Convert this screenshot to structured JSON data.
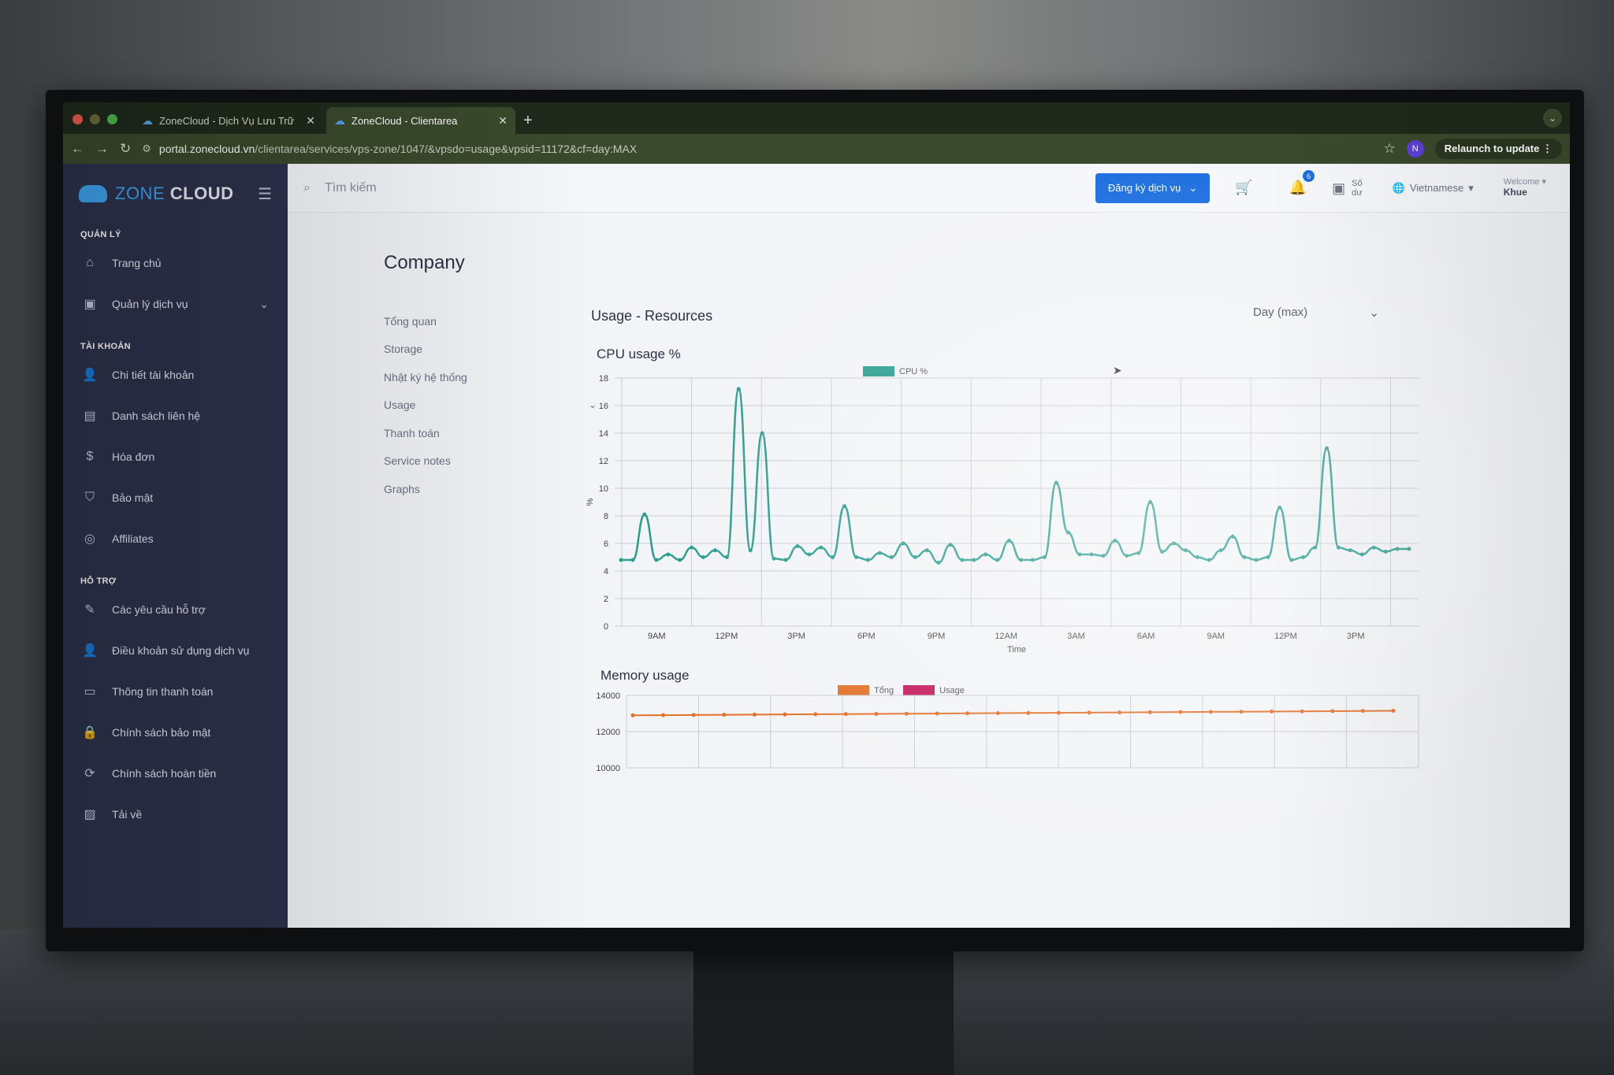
{
  "browser": {
    "tabs": [
      {
        "title": "ZoneCloud - Dịch Vụ Lưu Trữ"
      },
      {
        "title": "ZoneCloud - Clientarea"
      }
    ],
    "url_domain": "portal.zonecloud.vn",
    "url_path": "/clientarea/services/vps-zone/1047/&vpsdo=usage&vpsid=11172&cf=day:MAX",
    "profile_initial": "N",
    "relaunch_label": "Relaunch to update"
  },
  "sidebar": {
    "brand_a": "ZONE",
    "brand_b": "CLOUD",
    "sections": {
      "manage": "QUẢN LÝ",
      "account": "TÀI KHOẢN",
      "support": "HỖ TRỢ"
    },
    "items": [
      {
        "label": "Trang chủ",
        "icon": "home-icon"
      },
      {
        "label": "Quản lý dịch vụ",
        "icon": "services-icon"
      },
      {
        "label": "Chi tiết tài khoản",
        "icon": "user-icon"
      },
      {
        "label": "Danh sách liên hệ",
        "icon": "contacts-icon"
      },
      {
        "label": "Hóa đơn",
        "icon": "dollar-icon"
      },
      {
        "label": "Bảo mật",
        "icon": "shield-icon"
      },
      {
        "label": "Affiliates",
        "icon": "affiliates-icon"
      },
      {
        "label": "Các yêu cầu hỗ trợ",
        "icon": "ticket-icon"
      },
      {
        "label": "Điều khoản sử dụng dịch vụ",
        "icon": "user-icon"
      },
      {
        "label": "Thông tin thanh toán",
        "icon": "card-icon"
      },
      {
        "label": "Chính sách bảo mật",
        "icon": "lock-icon"
      },
      {
        "label": "Chính sách hoàn tiền",
        "icon": "refresh-icon"
      },
      {
        "label": "Tải về",
        "icon": "save-icon"
      }
    ]
  },
  "topbar": {
    "search_placeholder": "Tìm kiếm",
    "register_button": "Đăng ký dịch vụ",
    "notification_count": "6",
    "balance_label_1": "Số",
    "balance_label_2": "dư",
    "language": "Vietnamese",
    "welcome": "Welcome",
    "username": "Khue"
  },
  "page": {
    "title": "Company",
    "subnav": [
      "Tổng quan",
      "Storage",
      "Nhật ký hệ thống",
      "Usage",
      "Thanh toán",
      "Service notes",
      "Graphs"
    ],
    "panel_title": "Usage - Resources",
    "period": "Day (max)"
  },
  "colors": {
    "accent": "#1d6fe0",
    "cpu_series": "#2a9d8f",
    "mem_total": "#e2702a",
    "mem_usage": "#c2185b",
    "sidebar_bg": "#2c324c"
  },
  "chart_data": [
    {
      "type": "line",
      "title": "CPU usage %",
      "xlabel": "Time",
      "ylabel": "%",
      "ylim": [
        0,
        18
      ],
      "yticks": [
        0,
        2,
        4,
        6,
        8,
        10,
        12,
        14,
        16,
        18
      ],
      "xtick_labels": [
        "9AM",
        "12PM",
        "3PM",
        "6PM",
        "9PM",
        "12AM",
        "3AM",
        "6AM",
        "9AM",
        "12PM",
        "3PM"
      ],
      "grid": true,
      "legend": "top",
      "series": [
        {
          "name": "CPU %",
          "values": [
            4.8,
            4.8,
            8.1,
            4.8,
            5.2,
            4.8,
            5.7,
            5.0,
            5.5,
            5.0,
            17.2,
            5.5,
            14.0,
            4.9,
            4.8,
            5.8,
            5.2,
            5.7,
            5.0,
            8.7,
            5.0,
            4.8,
            5.3,
            5.0,
            6.0,
            5.0,
            5.5,
            4.6,
            5.9,
            4.8,
            4.8,
            5.2,
            4.8,
            6.2,
            4.8,
            4.8,
            5.0,
            10.4,
            6.8,
            5.2,
            5.2,
            5.1,
            6.2,
            5.1,
            5.3,
            9.0,
            5.4,
            6.0,
            5.5,
            5.0,
            4.8,
            5.5,
            6.5,
            5.0,
            4.8,
            5.0,
            8.6,
            4.8,
            5.0,
            5.7,
            12.9,
            5.7,
            5.5,
            5.2,
            5.7,
            5.4,
            5.6,
            5.6
          ]
        }
      ]
    },
    {
      "type": "line",
      "title": "Memory usage",
      "ylim": [
        10000,
        14000
      ],
      "yticks": [
        10000,
        12000,
        14000
      ],
      "grid": true,
      "legend": "top",
      "series": [
        {
          "name": "Tổng",
          "values": [
            12900,
            12910,
            12920,
            12930,
            12940,
            12950,
            12960,
            12970,
            12980,
            12990,
            13000,
            13010,
            13020,
            13030,
            13040,
            13050,
            13060,
            13070,
            13080,
            13090,
            13100,
            13110,
            13120,
            13130,
            13140,
            13150
          ]
        },
        {
          "name": "Usage",
          "values": []
        }
      ]
    }
  ]
}
